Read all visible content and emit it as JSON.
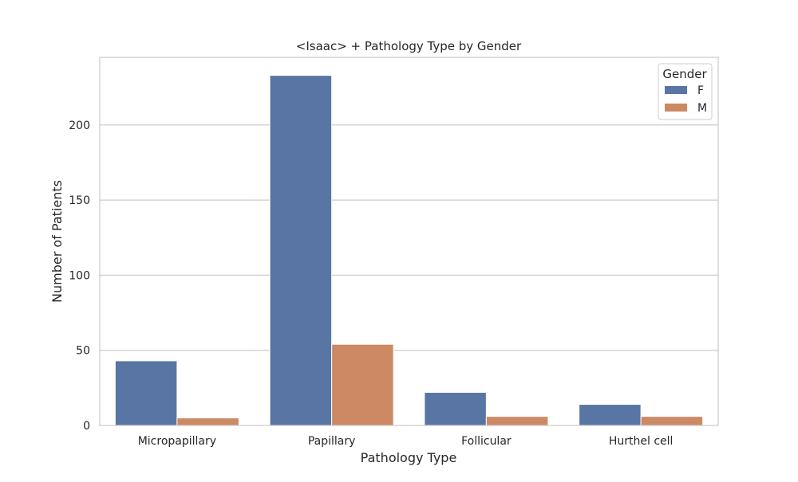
{
  "chart_data": {
    "type": "bar",
    "title": "<Isaac> + Pathology Type by Gender",
    "xlabel": "Pathology Type",
    "ylabel": "Number of Patients",
    "categories": [
      "Micropapillary",
      "Papillary",
      "Follicular",
      "Hurthel cell"
    ],
    "series": [
      {
        "name": "F",
        "values": [
          43,
          233,
          22,
          14
        ],
        "color": "#5875a4"
      },
      {
        "name": "M",
        "values": [
          5,
          54,
          6,
          6
        ],
        "color": "#cc8963"
      }
    ],
    "ylim": [
      0,
      245
    ],
    "yticks": [
      0,
      50,
      100,
      150,
      200
    ],
    "grid": "y",
    "legend": {
      "title": "Gender",
      "position": "top-right"
    }
  }
}
